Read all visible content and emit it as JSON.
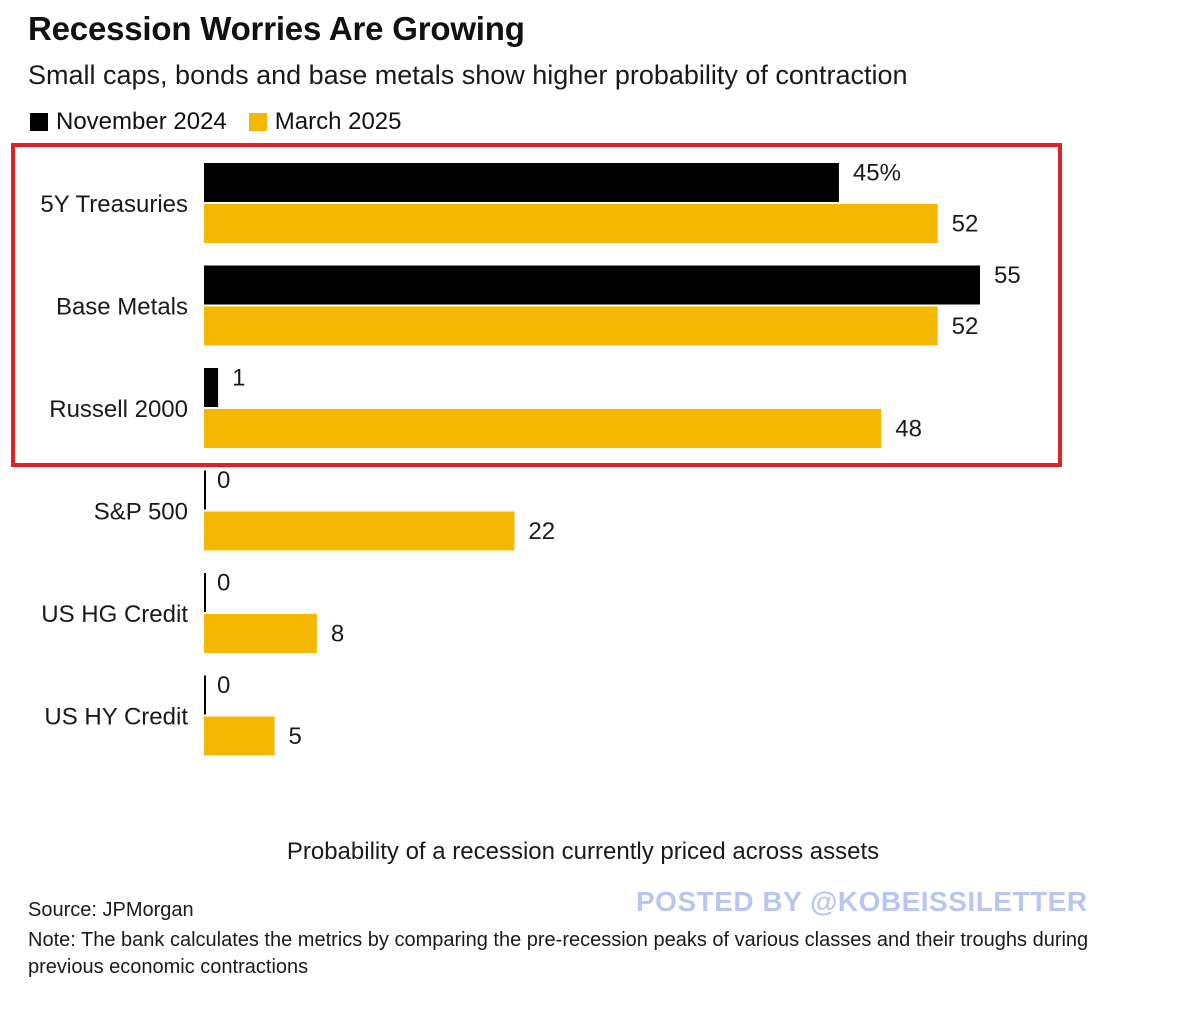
{
  "header": {
    "title": "Recession Worries Are Growing",
    "subtitle": "Small caps, bonds and base metals show higher probability of contraction"
  },
  "legend": [
    {
      "label": "November 2024",
      "color": "#000000"
    },
    {
      "label": "March 2025",
      "color": "#f5b800"
    }
  ],
  "chart_data": {
    "type": "bar",
    "orientation": "horizontal",
    "title": "Recession Worries Are Growing",
    "subtitle": "Small caps, bonds and base metals show higher probability of contraction",
    "categories": [
      "5Y Treasuries",
      "Base Metals",
      "Russell 2000",
      "S&P 500",
      "US HG Credit",
      "US HY Credit"
    ],
    "series": [
      {
        "name": "November 2024",
        "color": "#000000",
        "values": [
          45,
          55,
          1,
          0,
          0,
          0
        ]
      },
      {
        "name": "March 2025",
        "color": "#f5b800",
        "values": [
          52,
          52,
          48,
          22,
          8,
          5
        ]
      }
    ],
    "value_labels": {
      "November 2024": [
        "45%",
        "55",
        "1",
        "0",
        "0",
        "0"
      ],
      "March 2025": [
        "52",
        "52",
        "48",
        "22",
        "8",
        "5"
      ]
    },
    "xlim": [
      0,
      55
    ],
    "xlabel": "Probability of a recession currently priced across assets",
    "ylabel": "",
    "grid": false,
    "legend_position": "top-left",
    "highlight": {
      "categories": [
        "5Y Treasuries",
        "Base Metals",
        "Russell 2000"
      ],
      "color": "#e0202a"
    }
  },
  "footer": {
    "source": "Source: JPMorgan",
    "note": "Note: The bank calculates the metrics by comparing the pre-recession peaks of various classes and their troughs during previous economic contractions",
    "watermark": "POSTED BY @KOBEISSILETTER"
  }
}
